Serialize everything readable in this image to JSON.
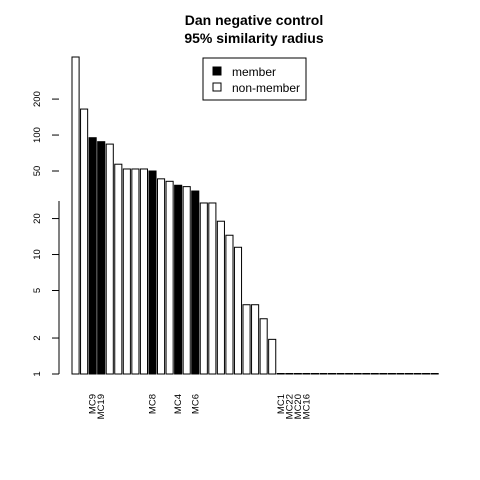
{
  "chart_data": {
    "type": "bar",
    "title": "Dan negative control",
    "subtitle": "95% similarity radius",
    "y_scale": "log",
    "ylim": [
      1,
      450
    ],
    "y_ticks": [
      {
        "value": 1,
        "label": "1"
      },
      {
        "value": 2,
        "label": "2"
      },
      {
        "value": 5,
        "label": "5"
      },
      {
        "value": 10,
        "label": "10"
      },
      {
        "value": 20,
        "label": "20"
      },
      {
        "value": 50,
        "label": "50"
      },
      {
        "value": 100,
        "label": "100"
      },
      {
        "value": 200,
        "label": "200"
      }
    ],
    "legend": {
      "position": "top-right",
      "entries": [
        {
          "label": "member",
          "color": "#000000"
        },
        {
          "label": "non-member",
          "color": "#ffffff"
        }
      ]
    },
    "colors": {
      "member": "#000000",
      "non_member": "#ffffff",
      "border": "#000000"
    },
    "bars": [
      {
        "value": 450,
        "member": false,
        "label": ""
      },
      {
        "value": 165,
        "member": false,
        "label": ""
      },
      {
        "value": 95,
        "member": true,
        "label": "MC9"
      },
      {
        "value": 88,
        "member": true,
        "label": "MC19"
      },
      {
        "value": 84,
        "member": false,
        "label": ""
      },
      {
        "value": 57,
        "member": false,
        "label": ""
      },
      {
        "value": 52,
        "member": false,
        "label": ""
      },
      {
        "value": 52,
        "member": false,
        "label": ""
      },
      {
        "value": 52,
        "member": false,
        "label": ""
      },
      {
        "value": 50,
        "member": true,
        "label": "MC8"
      },
      {
        "value": 43,
        "member": false,
        "label": ""
      },
      {
        "value": 41,
        "member": false,
        "label": ""
      },
      {
        "value": 38,
        "member": true,
        "label": "MC4"
      },
      {
        "value": 37,
        "member": false,
        "label": ""
      },
      {
        "value": 34,
        "member": true,
        "label": "MC6"
      },
      {
        "value": 27,
        "member": false,
        "label": ""
      },
      {
        "value": 27,
        "member": false,
        "label": ""
      },
      {
        "value": 19,
        "member": false,
        "label": ""
      },
      {
        "value": 14.5,
        "member": false,
        "label": ""
      },
      {
        "value": 11.5,
        "member": false,
        "label": ""
      },
      {
        "value": 3.8,
        "member": false,
        "label": ""
      },
      {
        "value": 3.8,
        "member": false,
        "label": ""
      },
      {
        "value": 2.9,
        "member": false,
        "label": ""
      },
      {
        "value": 1.95,
        "member": false,
        "label": ""
      },
      {
        "value": 1,
        "member": true,
        "label": "MC1"
      },
      {
        "value": 1,
        "member": true,
        "label": "MC22"
      },
      {
        "value": 1,
        "member": true,
        "label": "MC20"
      },
      {
        "value": 1,
        "member": true,
        "label": "MC16"
      },
      {
        "value": 1,
        "member": false,
        "label": ""
      },
      {
        "value": 1,
        "member": false,
        "label": ""
      },
      {
        "value": 1,
        "member": false,
        "label": ""
      },
      {
        "value": 1,
        "member": false,
        "label": ""
      },
      {
        "value": 1,
        "member": false,
        "label": ""
      },
      {
        "value": 1,
        "member": false,
        "label": ""
      },
      {
        "value": 1,
        "member": false,
        "label": ""
      },
      {
        "value": 1,
        "member": false,
        "label": ""
      },
      {
        "value": 1,
        "member": false,
        "label": ""
      },
      {
        "value": 1,
        "member": false,
        "label": ""
      },
      {
        "value": 1,
        "member": false,
        "label": ""
      },
      {
        "value": 1,
        "member": false,
        "label": ""
      },
      {
        "value": 1,
        "member": false,
        "label": ""
      },
      {
        "value": 1,
        "member": false,
        "label": ""
      },
      {
        "value": 1,
        "member": false,
        "label": ""
      }
    ]
  }
}
